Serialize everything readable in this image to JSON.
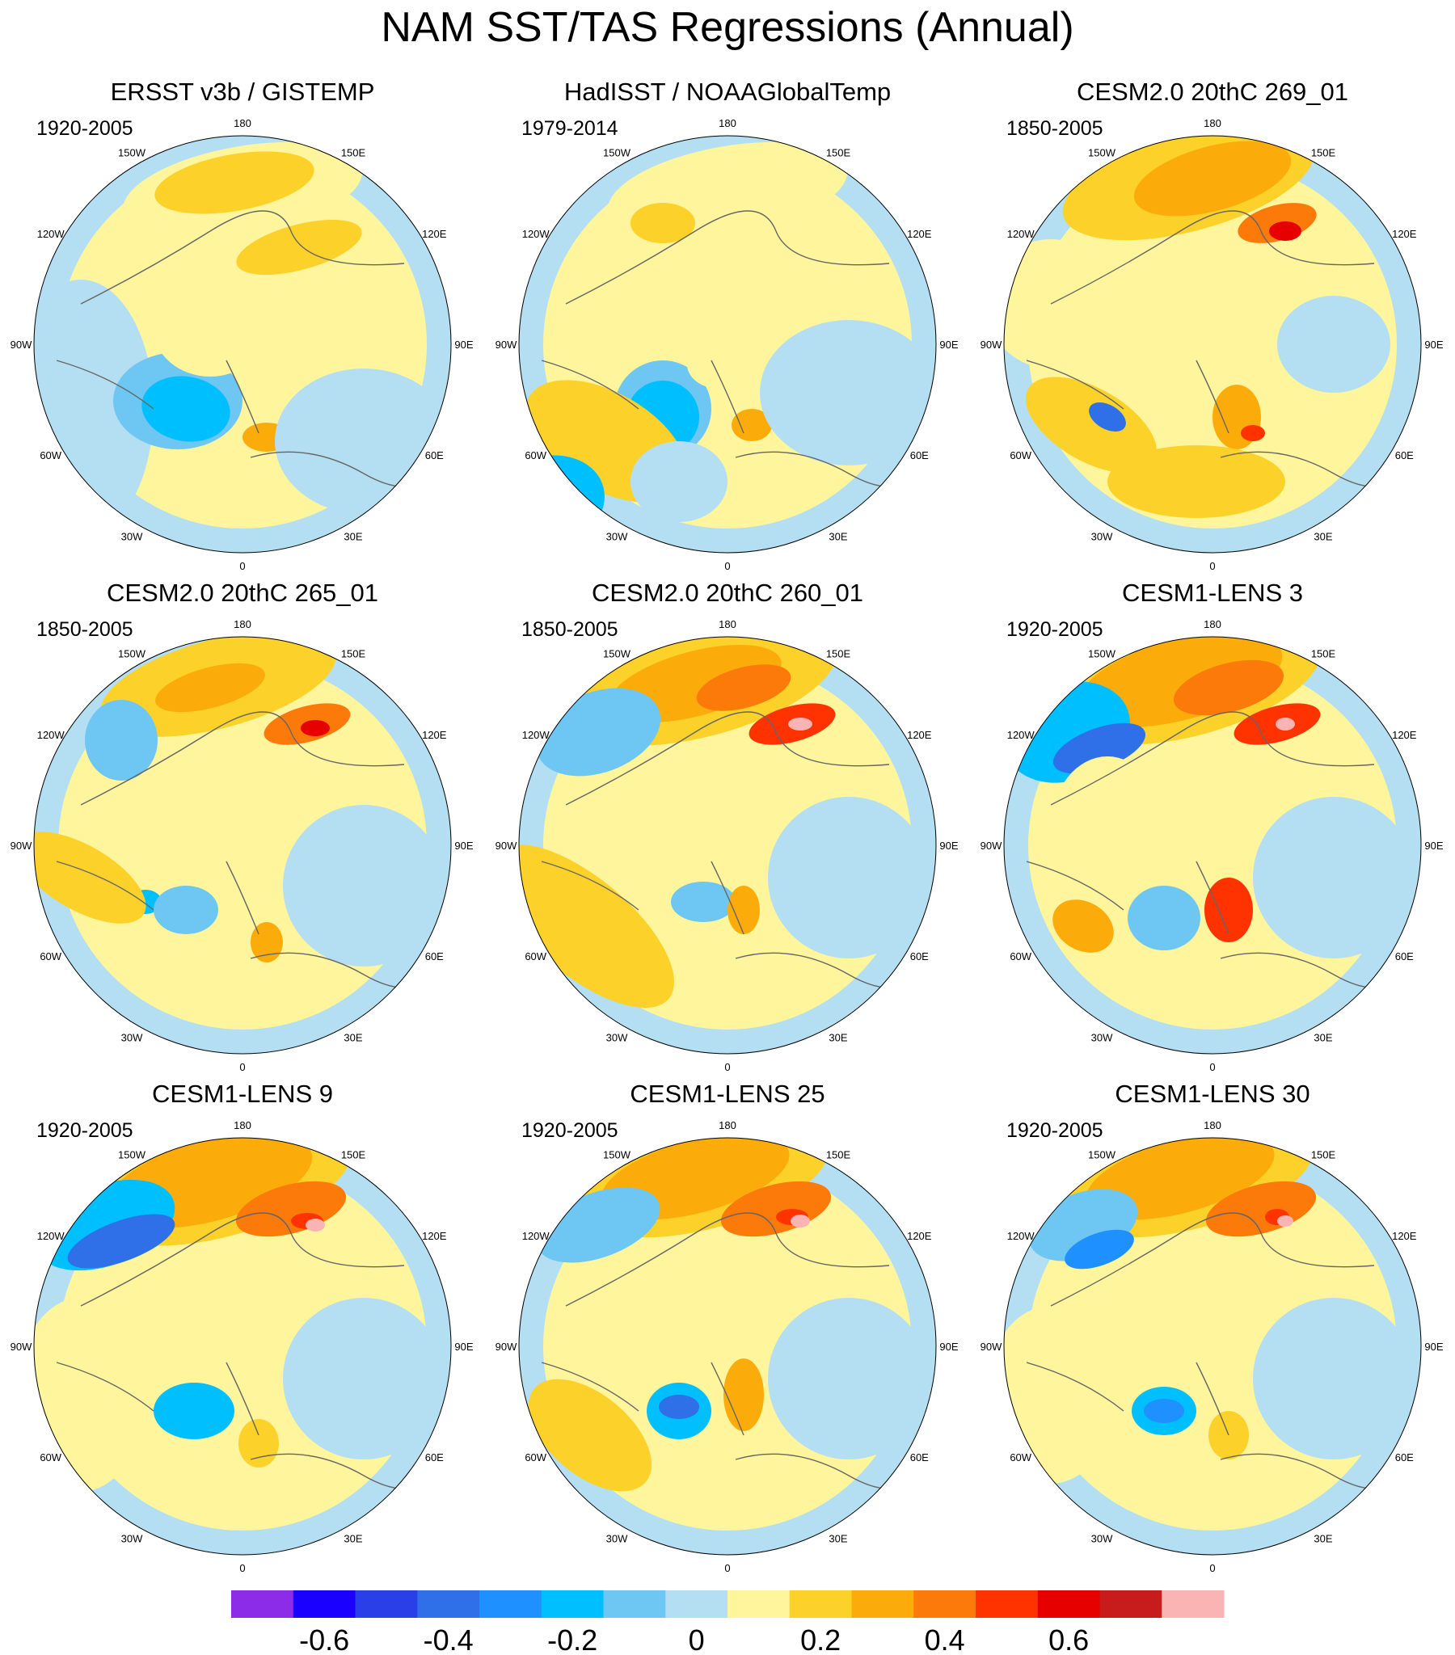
{
  "title": "NAM SST/TAS Regressions (Annual)",
  "lon_labels": [
    "180",
    "150E",
    "120E",
    "90E",
    "60E",
    "30E",
    "0",
    "30W",
    "60W",
    "90W",
    "120W",
    "150W"
  ],
  "panels": [
    {
      "title": "ERSST v3b / GISTEMP",
      "period": "1920-2005"
    },
    {
      "title": "HadISST / NOAAGlobalTemp",
      "period": "1979-2014"
    },
    {
      "title": "CESM2.0 20thC 269_01",
      "period": "1850-2005"
    },
    {
      "title": "CESM2.0 20thC 265_01",
      "period": "1850-2005"
    },
    {
      "title": "CESM2.0 20thC 260_01",
      "period": "1850-2005"
    },
    {
      "title": "CESM1-LENS 3",
      "period": "1920-2005"
    },
    {
      "title": "CESM1-LENS 9",
      "period": "1920-2005"
    },
    {
      "title": "CESM1-LENS 25",
      "period": "1920-2005"
    },
    {
      "title": "CESM1-LENS 30",
      "period": "1920-2005"
    }
  ],
  "colorbar": {
    "colors": [
      "#8c2be8",
      "#1a00ff",
      "#2a3fe8",
      "#2f6fe8",
      "#1e90ff",
      "#00bfff",
      "#6ec6f2",
      "#b4dff2",
      "#fff59d",
      "#fcd12a",
      "#fcac0a",
      "#fc7a0a",
      "#ff3300",
      "#e60000",
      "#c81c1c",
      "#fbb4b4"
    ],
    "tick_labels": [
      "-0.6",
      "-0.4",
      "-0.2",
      "0",
      "0.2",
      "0.4",
      "0.6"
    ],
    "tick_values": [
      -0.6,
      -0.4,
      -0.2,
      0,
      0.2,
      0.4,
      0.6
    ],
    "levels_min": -0.7,
    "levels_step": 0.1
  }
}
